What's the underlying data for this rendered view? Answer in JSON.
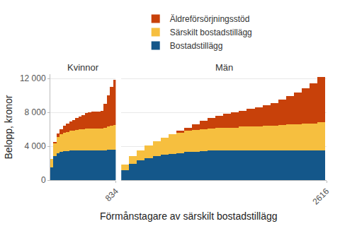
{
  "chart_data": {
    "type": "bar",
    "stacked": true,
    "grid": true,
    "ylabel": "Belopp, kronor",
    "xlabel": "Förmånstagare av särskilt bostadstillägg",
    "ylim": [
      0,
      12500
    ],
    "yticks": [
      0,
      {
        "value": 4000,
        "label": "4 000"
      },
      {
        "value": 8000,
        "label": "8 000"
      },
      {
        "value": 12000,
        "label": "12 000"
      }
    ],
    "panels": [
      {
        "title": "Kvinnor",
        "xlim": [
          0,
          834
        ],
        "xticks": [
          834
        ],
        "x": [
          20,
          60,
          100,
          140,
          180,
          220,
          260,
          300,
          340,
          380,
          420,
          460,
          500,
          540,
          580,
          620,
          660,
          700,
          740,
          780,
          820
        ],
        "series": [
          {
            "name": "Bostadstillägg",
            "color": "#14578a",
            "values": [
              1500,
              2800,
              3200,
              3300,
              3400,
              3400,
              3500,
              3500,
              3500,
              3500,
              3500,
              3500,
              3500,
              3500,
              3500,
              3500,
              3500,
              3500,
              3600,
              3600,
              3600
            ]
          },
          {
            "name": "Särskilt bostadstillägg",
            "color": "#f6bf3f",
            "values": [
              1000,
              1500,
              1900,
              2100,
              2200,
              2300,
              2300,
              2300,
              2400,
              2500,
              2500,
              2600,
              2600,
              2600,
              2600,
              2600,
              2600,
              2700,
              2700,
              2800,
              2900
            ]
          },
          {
            "name": "Äldreförsörjningsstöd",
            "color": "#c8410a",
            "values": [
              0,
              200,
              400,
              600,
              800,
              1000,
              1100,
              1300,
              1400,
              1500,
              1700,
              1800,
              1900,
              2000,
              2000,
              2000,
              2100,
              2800,
              3700,
              4600,
              5300
            ]
          }
        ]
      },
      {
        "title": "Män",
        "xlim": [
          0,
          2616
        ],
        "xticks": [
          2616
        ],
        "x": [
          50,
          150,
          250,
          350,
          450,
          550,
          650,
          750,
          850,
          950,
          1050,
          1150,
          1250,
          1350,
          1450,
          1550,
          1650,
          1750,
          1850,
          1950,
          2050,
          2150,
          2250,
          2350,
          2450,
          2550
        ],
        "series": [
          {
            "name": "Bostadstillägg",
            "color": "#14578a",
            "values": [
              1200,
              1900,
              2300,
              2600,
              2800,
              3000,
              3100,
              3200,
              3300,
              3300,
              3400,
              3500,
              3500,
              3500,
              3500,
              3500,
              3500,
              3500,
              3500,
              3500,
              3500,
              3500,
              3500,
              3500,
              3500,
              3500
            ]
          },
          {
            "name": "Särskilt bostadstillägg",
            "color": "#f6bf3f",
            "values": [
              600,
              900,
              1200,
              1500,
              1800,
              2000,
              2300,
              2400,
              2500,
              2600,
              2600,
              2600,
              2700,
              2700,
              2700,
              2800,
              2800,
              2800,
              2900,
              2900,
              3000,
              3100,
              3100,
              3200,
              3200,
              3300
            ]
          },
          {
            "name": "Äldreförsörjningsstöd",
            "color": "#c8410a",
            "values": [
              0,
              0,
              0,
              0,
              0,
              0,
              0,
              200,
              400,
              700,
              1000,
              1200,
              1400,
              1600,
              1800,
              1900,
              2100,
              2300,
              2400,
              2700,
              3000,
              3300,
              3700,
              4100,
              4700,
              5400
            ]
          }
        ]
      }
    ]
  }
}
